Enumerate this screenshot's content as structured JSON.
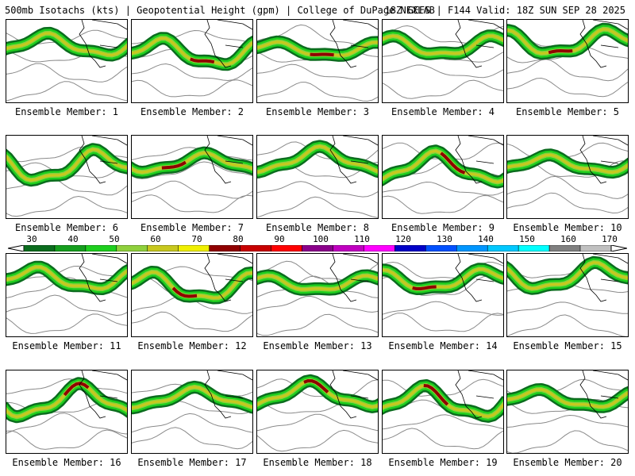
{
  "header": {
    "title_left": "500mb Isotachs (kts) | Geopotential Height (gpm) | College of DuPage NEXLAB",
    "title_right": "18Z GEFS | F144 Valid: 18Z SUN SEP 28 2025"
  },
  "colorbar": {
    "tick_labels": [
      "30",
      "40",
      "50",
      "60",
      "70",
      "80",
      "90",
      "100",
      "110",
      "120",
      "130",
      "140",
      "150",
      "160",
      "170"
    ],
    "colors": [
      "#0b6d1e",
      "#159e1e",
      "#1ecf1e",
      "#8fd03c",
      "#c8c81e",
      "#f0f000",
      "#900000",
      "#c80000",
      "#ff0000",
      "#8b008b",
      "#c000c0",
      "#ff00ff",
      "#0000c8",
      "#0050ff",
      "#0096ff",
      "#00c8ff",
      "#00ffff",
      "#808080",
      "#c0c0c0"
    ]
  },
  "panels": [
    {
      "label": "Ensemble Member: 1"
    },
    {
      "label": "Ensemble Member: 2"
    },
    {
      "label": "Ensemble Member: 3"
    },
    {
      "label": "Ensemble Member: 4"
    },
    {
      "label": "Ensemble Member: 5"
    },
    {
      "label": "Ensemble Member: 6"
    },
    {
      "label": "Ensemble Member: 7"
    },
    {
      "label": "Ensemble Member: 8"
    },
    {
      "label": "Ensemble Member: 9"
    },
    {
      "label": "Ensemble Member: 10"
    },
    {
      "label": "Ensemble Member: 11"
    },
    {
      "label": "Ensemble Member: 12"
    },
    {
      "label": "Ensemble Member: 13"
    },
    {
      "label": "Ensemble Member: 14"
    },
    {
      "label": "Ensemble Member: 15"
    },
    {
      "label": "Ensemble Member: 16"
    },
    {
      "label": "Ensemble Member: 17"
    },
    {
      "label": "Ensemble Member: 18"
    },
    {
      "label": "Ensemble Member: 19"
    },
    {
      "label": "Ensemble Member: 20"
    }
  ]
}
